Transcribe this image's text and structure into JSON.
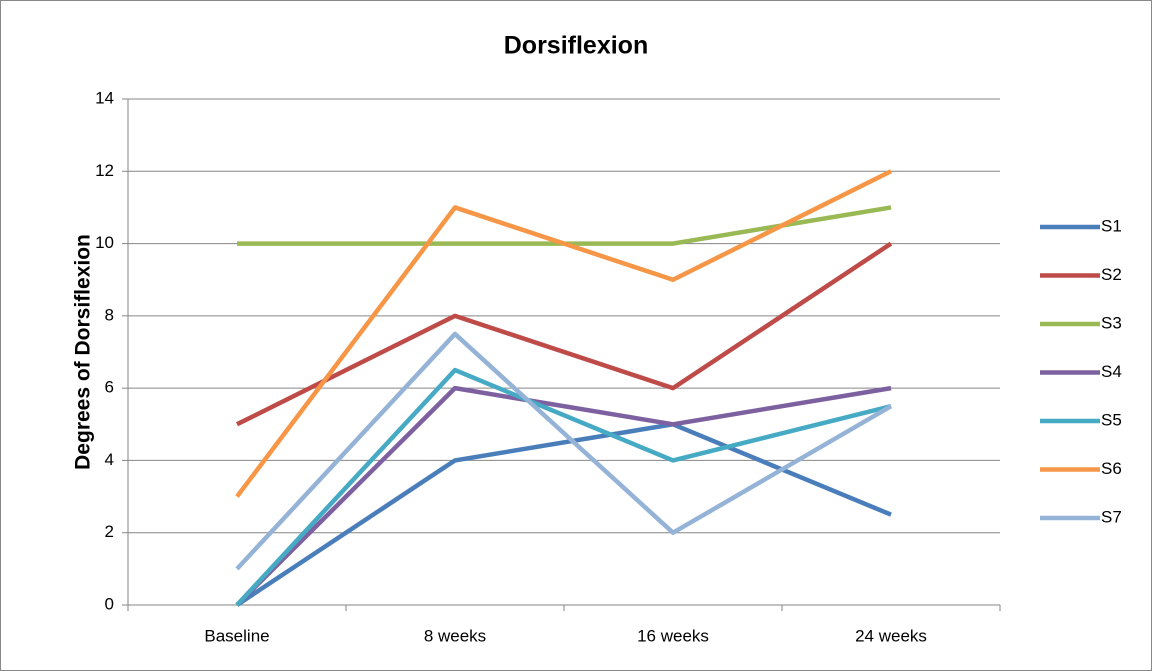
{
  "chart_data": {
    "type": "line",
    "title": "Dorsiflexion",
    "y_label": "Degrees of Dorsiflexion",
    "categories": [
      "Baseline",
      "8 weeks",
      "16 weeks",
      "24 weeks"
    ],
    "series": [
      {
        "name": "S1",
        "color": "#4a7ebb",
        "values": [
          0,
          4,
          5,
          2.5
        ]
      },
      {
        "name": "S2",
        "color": "#be4b48",
        "values": [
          5,
          8,
          6,
          10
        ]
      },
      {
        "name": "S3",
        "color": "#98b954",
        "values": [
          10,
          10,
          10,
          11
        ]
      },
      {
        "name": "S4",
        "color": "#7d60a0",
        "values": [
          0,
          6,
          5,
          6
        ]
      },
      {
        "name": "S5",
        "color": "#46aac5",
        "values": [
          0,
          6.5,
          4,
          5.5
        ]
      },
      {
        "name": "S6",
        "color": "#f79646",
        "values": [
          3,
          11,
          9,
          12
        ]
      },
      {
        "name": "S7",
        "color": "#95b3d7",
        "values": [
          1,
          7.5,
          2,
          5.5
        ]
      }
    ],
    "ylim": [
      0,
      14
    ],
    "yticks": [
      0,
      2,
      4,
      6,
      8,
      10,
      12,
      14
    ],
    "grid": true,
    "legend": "right"
  }
}
